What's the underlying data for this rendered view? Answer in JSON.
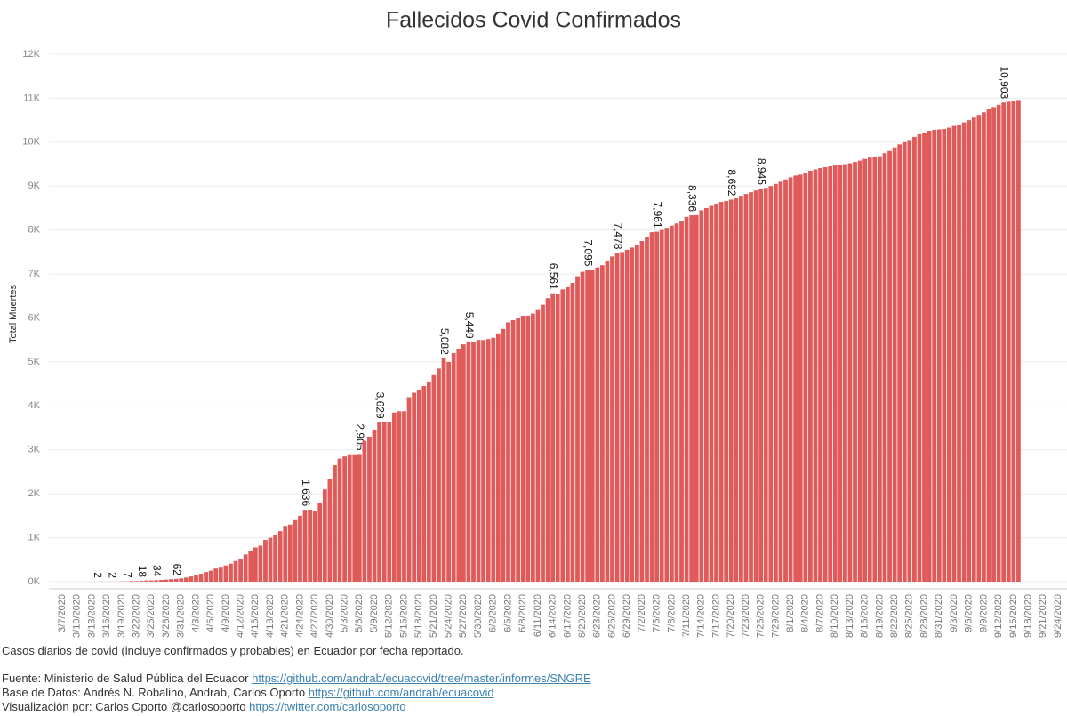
{
  "chart_data": {
    "type": "bar",
    "title": "Fallecidos Covid Confirmados",
    "y_label": "Total Muertes",
    "color": "#e05a5a",
    "grid": true,
    "ylim": [
      0,
      12000
    ],
    "yticks": [
      {
        "value": 0,
        "label": "0K"
      },
      {
        "value": 1000,
        "label": "1K"
      },
      {
        "value": 2000,
        "label": "2K"
      },
      {
        "value": 3000,
        "label": "3K"
      },
      {
        "value": 4000,
        "label": "4K"
      },
      {
        "value": 5000,
        "label": "5K"
      },
      {
        "value": 6000,
        "label": "6K"
      },
      {
        "value": 7000,
        "label": "7K"
      },
      {
        "value": 8000,
        "label": "8K"
      },
      {
        "value": 9000,
        "label": "9K"
      },
      {
        "value": 10000,
        "label": "10K"
      },
      {
        "value": 11000,
        "label": "11K"
      },
      {
        "value": 12000,
        "label": "12K"
      }
    ],
    "categories": [
      "3/7/2020",
      null,
      null,
      "3/10/2020",
      null,
      null,
      "3/13/2020",
      null,
      null,
      "3/16/2020",
      null,
      null,
      "3/19/2020",
      null,
      null,
      "3/22/2020",
      null,
      null,
      "3/25/2020",
      null,
      null,
      "3/28/2020",
      null,
      null,
      "3/31/2020",
      null,
      null,
      "4/3/2020",
      null,
      null,
      "4/6/2020",
      null,
      null,
      "4/9/2020",
      null,
      null,
      "4/12/2020",
      null,
      null,
      "4/15/2020",
      null,
      null,
      "4/18/2020",
      null,
      null,
      "4/21/2020",
      null,
      null,
      "4/24/2020",
      null,
      null,
      "4/27/2020",
      null,
      null,
      "4/30/2020",
      null,
      null,
      "5/3/2020",
      null,
      null,
      "5/6/2020",
      null,
      null,
      "5/9/2020",
      null,
      null,
      "5/12/2020",
      null,
      null,
      "5/15/2020",
      null,
      null,
      "5/18/2020",
      null,
      null,
      "5/21/2020",
      null,
      null,
      "5/24/2020",
      null,
      null,
      "5/27/2020",
      null,
      null,
      "5/30/2020",
      null,
      null,
      "6/2/2020",
      null,
      null,
      "6/5/2020",
      null,
      null,
      "6/8/2020",
      null,
      null,
      "6/11/2020",
      null,
      null,
      "6/14/2020",
      null,
      null,
      "6/17/2020",
      null,
      null,
      "6/20/2020",
      null,
      null,
      "6/23/2020",
      null,
      null,
      "6/26/2020",
      null,
      null,
      "6/29/2020",
      null,
      null,
      "7/2/2020",
      null,
      null,
      "7/5/2020",
      null,
      null,
      "7/8/2020",
      null,
      null,
      "7/11/2020",
      null,
      null,
      "7/14/2020",
      null,
      null,
      "7/17/2020",
      null,
      null,
      "7/20/2020",
      null,
      null,
      "7/23/2020",
      null,
      null,
      "7/26/2020",
      null,
      null,
      "7/29/2020",
      null,
      null,
      "8/1/2020",
      null,
      null,
      "8/4/2020",
      null,
      null,
      "8/7/2020",
      null,
      null,
      "8/10/2020",
      null,
      null,
      "8/13/2020",
      null,
      null,
      "8/16/2020",
      null,
      null,
      "8/19/2020",
      null,
      null,
      "8/22/2020",
      null,
      null,
      "8/25/2020",
      null,
      null,
      "8/28/2020",
      null,
      null,
      "8/31/2020",
      null,
      null,
      "9/3/2020",
      null,
      null,
      "9/6/2020",
      null,
      null,
      "9/9/2020",
      null,
      null,
      "9/12/2020",
      null,
      null,
      "9/15/2020",
      null,
      null,
      "9/18/2020",
      null,
      null,
      "9/21/2020",
      null,
      null,
      "9/24/2020"
    ],
    "values": [
      null,
      null,
      null,
      null,
      null,
      null,
      2,
      2,
      2,
      2,
      2,
      3,
      5,
      7,
      14,
      14,
      18,
      27,
      28,
      34,
      41,
      48,
      58,
      62,
      75,
      93,
      120,
      145,
      180,
      220,
      250,
      300,
      320,
      370,
      410,
      470,
      520,
      620,
      700,
      780,
      820,
      950,
      1000,
      1060,
      1150,
      1270,
      1300,
      1400,
      1500,
      1636,
      1640,
      1620,
      1800,
      2100,
      2330,
      2650,
      2800,
      2850,
      2900,
      2900,
      2905,
      3200,
      3300,
      3450,
      3629,
      3629,
      3629,
      3850,
      3880,
      3880,
      4200,
      4300,
      4350,
      4450,
      4550,
      4700,
      4850,
      5082,
      5000,
      5200,
      5300,
      5400,
      5449,
      5450,
      5500,
      5500,
      5520,
      5550,
      5650,
      5750,
      5900,
      5950,
      6000,
      6050,
      6050,
      6100,
      6200,
      6300,
      6450,
      6561,
      6550,
      6650,
      6700,
      6800,
      6950,
      7050,
      7095,
      7100,
      7150,
      7200,
      7300,
      7400,
      7478,
      7500,
      7550,
      7600,
      7650,
      7750,
      7850,
      7950,
      7961,
      8000,
      8050,
      8100,
      8150,
      8200,
      8300,
      8336,
      8340,
      8450,
      8500,
      8550,
      8600,
      8640,
      8660,
      8692,
      8720,
      8780,
      8820,
      8860,
      8900,
      8945,
      8960,
      9000,
      9050,
      9100,
      9150,
      9200,
      9240,
      9260,
      9300,
      9350,
      9380,
      9410,
      9430,
      9450,
      9470,
      9480,
      9500,
      9520,
      9550,
      9580,
      9620,
      9650,
      9660,
      9680,
      9750,
      9800,
      9880,
      9950,
      10000,
      10050,
      10120,
      10180,
      10220,
      10260,
      10280,
      10290,
      10300,
      10330,
      10370,
      10400,
      10450,
      10500,
      10560,
      10620,
      10680,
      10750,
      10800,
      10850,
      10903,
      10920,
      10940,
      10960,
      null,
      null,
      null,
      null,
      null,
      null,
      null,
      null
    ],
    "value_labels": [
      null,
      null,
      null,
      null,
      null,
      null,
      null,
      "2",
      null,
      null,
      "2",
      null,
      null,
      "7",
      null,
      null,
      "18",
      null,
      null,
      "34",
      null,
      null,
      null,
      "62",
      null,
      null,
      null,
      null,
      null,
      null,
      null,
      null,
      null,
      null,
      null,
      null,
      null,
      null,
      null,
      null,
      null,
      null,
      null,
      null,
      null,
      null,
      null,
      null,
      null,
      "1,636",
      null,
      null,
      null,
      null,
      null,
      null,
      null,
      null,
      null,
      null,
      "2,905",
      null,
      null,
      null,
      "3,629",
      null,
      null,
      null,
      null,
      null,
      null,
      null,
      null,
      null,
      null,
      null,
      null,
      "5,082",
      null,
      null,
      null,
      null,
      "5,449",
      null,
      null,
      null,
      null,
      null,
      null,
      null,
      null,
      null,
      null,
      null,
      null,
      null,
      null,
      null,
      null,
      "6,561",
      null,
      null,
      null,
      null,
      null,
      null,
      "7,095",
      null,
      null,
      null,
      null,
      null,
      "7,478",
      null,
      null,
      null,
      null,
      null,
      null,
      null,
      "7,961",
      null,
      null,
      null,
      null,
      null,
      null,
      "8,336",
      null,
      null,
      null,
      null,
      null,
      null,
      null,
      "8,692",
      null,
      null,
      null,
      null,
      null,
      "8,945",
      null,
      null,
      null,
      null,
      null,
      null,
      null,
      null,
      null,
      null,
      null,
      null,
      null,
      null,
      null,
      null,
      null,
      null,
      null,
      null,
      null,
      null,
      null,
      null,
      null,
      null,
      null,
      null,
      null,
      null,
      null,
      null,
      null,
      null,
      null,
      null,
      null,
      null,
      null,
      null,
      null,
      null,
      null,
      null,
      null,
      null,
      null,
      null,
      "10,903",
      null,
      null,
      null,
      null,
      null,
      null,
      null,
      null,
      null,
      null,
      null
    ],
    "footnote": "Casos diarios de covid (incluye confirmados y probables) en Ecuador por fecha reportado.",
    "credits": [
      {
        "text": "Fuente: Ministerio de Salud Pública del Ecuador",
        "url": "https://github.com/andrab/ecuacovid/tree/master/informes/SNGRE"
      },
      {
        "text": "Base de Datos: Andrés N. Robalino, Andrab, Carlos Oporto",
        "url": "https://github.com/andrab/ecuacovid"
      },
      {
        "text": "Visualización por: Carlos Oporto @carlosoporto",
        "url": "https://twitter.com/carlosoporto"
      }
    ]
  }
}
